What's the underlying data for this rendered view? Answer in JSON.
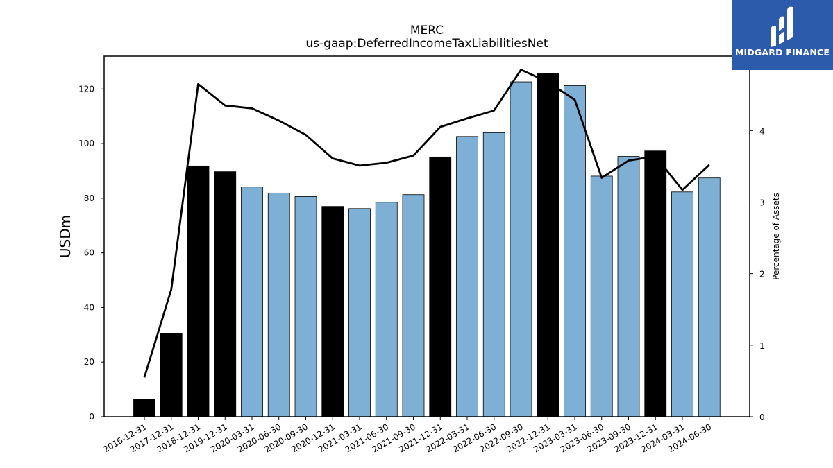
{
  "chart_data": {
    "type": "bar",
    "title": "MERC",
    "subtitle": "us-gaap:DeferredIncomeTaxLiabilitiesNet",
    "ylabel": "USDm",
    "y2label": "Percentage of Assets",
    "categories": [
      "2016-12-31",
      "2017-12-31",
      "2018-12-31",
      "2019-12-31",
      "2020-03-31",
      "2020-06-30",
      "2020-09-30",
      "2020-12-31",
      "2021-03-31",
      "2021-06-30",
      "2021-09-30",
      "2021-12-31",
      "2022-03-31",
      "2022-06-30",
      "2022-09-30",
      "2022-12-31",
      "2023-03-31",
      "2023-06-30",
      "2023-09-30",
      "2023-12-31",
      "2024-03-31",
      "2024-06-30"
    ],
    "series": [
      {
        "kind": "bar",
        "axis": "left",
        "values": [
          6.3,
          30.5,
          91.8,
          89.7,
          84.1,
          81.9,
          80.6,
          77.0,
          76.2,
          78.5,
          81.3,
          95.1,
          102.6,
          104.0,
          122.6,
          125.8,
          121.2,
          88.1,
          95.3,
          97.3,
          82.3,
          87.4
        ],
        "annual": [
          true,
          true,
          true,
          true,
          false,
          false,
          false,
          true,
          false,
          false,
          false,
          true,
          false,
          false,
          false,
          true,
          false,
          false,
          false,
          true,
          false,
          false
        ]
      },
      {
        "kind": "line",
        "axis": "right",
        "values": [
          0.55,
          1.78,
          4.65,
          4.35,
          4.31,
          4.14,
          3.94,
          3.61,
          3.51,
          3.55,
          3.65,
          4.05,
          4.17,
          4.28,
          4.85,
          4.68,
          4.43,
          3.34,
          3.58,
          3.64,
          3.17,
          3.52
        ]
      }
    ],
    "ylim": [
      0,
      132
    ],
    "y2lim": [
      0,
      5.04
    ],
    "yticks": [
      0,
      20,
      40,
      60,
      80,
      100,
      120
    ],
    "y2ticks": [
      0,
      1,
      2,
      3,
      4
    ],
    "colors": {
      "annual_bar": "#000000",
      "quarter_bar": "#7eb0d5",
      "line": "#000000",
      "bar_edge": "#000000"
    },
    "grid": false,
    "legend": "none"
  },
  "logo": {
    "text": "MIDGARD FINANCE",
    "icon": "midgard-logo-icon",
    "bg": "#2d5bab"
  }
}
